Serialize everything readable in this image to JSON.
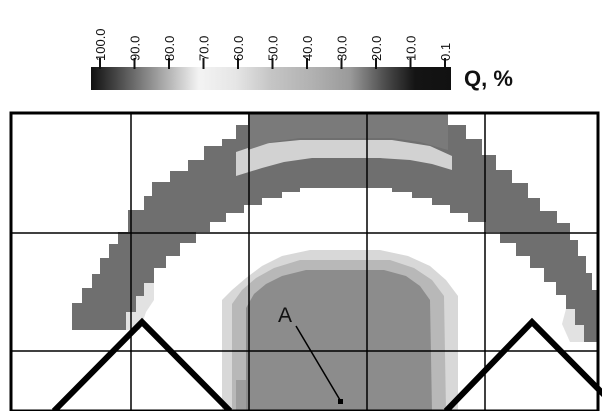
{
  "chart_data": {
    "type": "heatmap",
    "title": "",
    "colorbar": {
      "ticks": [
        "100.0",
        "90.0",
        "80.0",
        "70.0",
        "60.0",
        "50.0",
        "40.0",
        "30.0",
        "20.0",
        "10.0",
        "0.1"
      ],
      "tick_values": [
        100,
        90,
        80,
        70,
        60,
        50,
        40,
        30,
        20,
        10,
        0.1
      ],
      "quantity_label": "Q, %",
      "colors": [
        "#111111",
        "#8a8a8a",
        "#f2f2f2",
        "#ffffff",
        "#e6e6e6",
        "#bdbdbd",
        "#a8a8a8",
        "#b5b5b5",
        "#4a4a4a",
        "#141414",
        "#111111"
      ]
    },
    "grid": true,
    "annotations": [
      {
        "label": "A",
        "type": "point-marker"
      }
    ],
    "regions": [
      {
        "name": "outer-arch-band",
        "value_range": [
          20,
          40
        ]
      },
      {
        "name": "inner-arch-band",
        "value_range": [
          70,
          80
        ]
      },
      {
        "name": "central-dome",
        "value_range": [
          30,
          45
        ]
      }
    ]
  },
  "colors": {
    "dark_region": "#6f6f6f",
    "dome_core": "#8c8c8c",
    "dome_halo": "#b8b8b8",
    "light_halo": "#d2d2d2",
    "background": "#ffffff",
    "outline": "#000000"
  }
}
